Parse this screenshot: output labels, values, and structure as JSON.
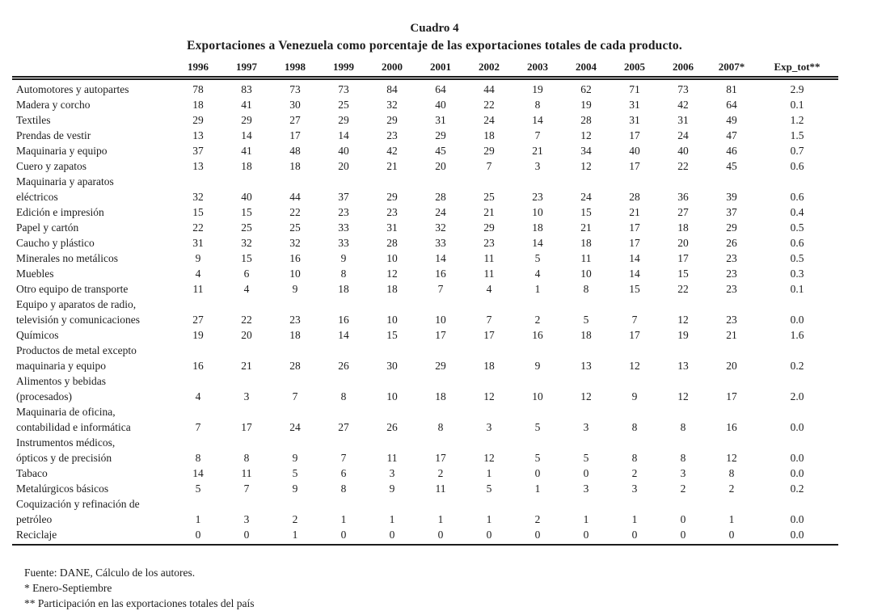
{
  "page": {
    "title": "Cuadro 4",
    "subtitle": "Exportaciones a Venezuela como porcentaje de las exportaciones totales de cada producto."
  },
  "colors": {
    "background": "#ffffff",
    "text": "#1c1c1c"
  },
  "chart_data": {
    "type": "table",
    "title": "Cuadro 4",
    "subtitle": "Exportaciones a Venezuela como porcentaje de las exportaciones totales de cada producto.",
    "columns": [
      "1996",
      "1997",
      "1998",
      "1999",
      "2000",
      "2001",
      "2002",
      "2003",
      "2004",
      "2005",
      "2006",
      "2007*",
      "Exp_tot**"
    ],
    "rows": [
      {
        "label": "Automotores y autopartes",
        "values": [
          78,
          83,
          73,
          73,
          84,
          64,
          44,
          19,
          62,
          71,
          73,
          81
        ],
        "exp_tot": "2.9"
      },
      {
        "label": "Madera y corcho",
        "values": [
          18,
          41,
          30,
          25,
          32,
          40,
          22,
          8,
          19,
          31,
          42,
          64
        ],
        "exp_tot": "0.1"
      },
      {
        "label": "Textiles",
        "values": [
          29,
          29,
          27,
          29,
          29,
          31,
          24,
          14,
          28,
          31,
          31,
          49
        ],
        "exp_tot": "1.2"
      },
      {
        "label": "Prendas de vestir",
        "values": [
          13,
          14,
          17,
          14,
          23,
          29,
          18,
          7,
          12,
          17,
          24,
          47
        ],
        "exp_tot": "1.5"
      },
      {
        "label": "Maquinaria y equipo",
        "values": [
          37,
          41,
          48,
          40,
          42,
          45,
          29,
          21,
          34,
          40,
          40,
          46
        ],
        "exp_tot": "0.7"
      },
      {
        "label": "Cuero y zapatos",
        "values": [
          13,
          18,
          18,
          20,
          21,
          20,
          7,
          3,
          12,
          17,
          22,
          45
        ],
        "exp_tot": "0.6"
      },
      {
        "label": "Maquinaria y aparatos\neléctricos",
        "values": [
          32,
          40,
          44,
          37,
          29,
          28,
          25,
          23,
          24,
          28,
          36,
          39
        ],
        "exp_tot": "0.6"
      },
      {
        "label": "Edición e impresión",
        "values": [
          15,
          15,
          22,
          23,
          23,
          24,
          21,
          10,
          15,
          21,
          27,
          37
        ],
        "exp_tot": "0.4"
      },
      {
        "label": "Papel y cartón",
        "values": [
          22,
          25,
          25,
          33,
          31,
          32,
          29,
          18,
          21,
          17,
          18,
          29
        ],
        "exp_tot": "0.5"
      },
      {
        "label": "Caucho y plástico",
        "values": [
          31,
          32,
          32,
          33,
          28,
          33,
          23,
          14,
          18,
          17,
          20,
          26
        ],
        "exp_tot": "0.6"
      },
      {
        "label": "Minerales no metálicos",
        "values": [
          9,
          15,
          16,
          9,
          10,
          14,
          11,
          5,
          11,
          14,
          17,
          23
        ],
        "exp_tot": "0.5"
      },
      {
        "label": "Muebles",
        "values": [
          4,
          6,
          10,
          8,
          12,
          16,
          11,
          4,
          10,
          14,
          15,
          23
        ],
        "exp_tot": "0.3"
      },
      {
        "label": "Otro equipo de transporte",
        "values": [
          11,
          4,
          9,
          18,
          18,
          7,
          4,
          1,
          8,
          15,
          22,
          23
        ],
        "exp_tot": "0.1"
      },
      {
        "label": "Equipo y aparatos de radio,\ntelevisión y comunicaciones",
        "values": [
          27,
          22,
          23,
          16,
          10,
          10,
          7,
          2,
          5,
          7,
          12,
          23
        ],
        "exp_tot": "0.0"
      },
      {
        "label": "Químicos",
        "values": [
          19,
          20,
          18,
          14,
          15,
          17,
          17,
          16,
          18,
          17,
          19,
          21
        ],
        "exp_tot": "1.6"
      },
      {
        "label": "Productos de metal excepto\nmaquinaria y equipo",
        "values": [
          16,
          21,
          28,
          26,
          30,
          29,
          18,
          9,
          13,
          12,
          13,
          20
        ],
        "exp_tot": "0.2"
      },
      {
        "label": "Alimentos y bebidas\n(procesados)",
        "values": [
          4,
          3,
          7,
          8,
          10,
          18,
          12,
          10,
          12,
          9,
          12,
          17
        ],
        "exp_tot": "2.0"
      },
      {
        "label": "Maquinaria de oficina,\ncontabilidad e informática",
        "values": [
          7,
          17,
          24,
          27,
          26,
          8,
          3,
          5,
          3,
          8,
          8,
          16
        ],
        "exp_tot": "0.0"
      },
      {
        "label": "Instrumentos médicos,\nópticos y de precisión",
        "values": [
          8,
          8,
          9,
          7,
          11,
          17,
          12,
          5,
          5,
          8,
          8,
          12
        ],
        "exp_tot": "0.0"
      },
      {
        "label": "Tabaco",
        "values": [
          14,
          11,
          5,
          6,
          3,
          2,
          1,
          0,
          0,
          2,
          3,
          8
        ],
        "exp_tot": "0.0"
      },
      {
        "label": "Metalúrgicos básicos",
        "values": [
          5,
          7,
          9,
          8,
          9,
          11,
          5,
          1,
          3,
          3,
          2,
          2
        ],
        "exp_tot": "0.2"
      },
      {
        "label": "Coquización y refinación de\npetróleo",
        "values": [
          1,
          3,
          2,
          1,
          1,
          1,
          1,
          2,
          1,
          1,
          0,
          1
        ],
        "exp_tot": "0.0"
      },
      {
        "label": "Reciclaje",
        "values": [
          0,
          0,
          1,
          0,
          0,
          0,
          0,
          0,
          0,
          0,
          0,
          0
        ],
        "exp_tot": "0.0"
      }
    ]
  },
  "footnotes": [
    "Fuente: DANE, Cálculo de los autores.",
    "* Enero-Septiembre",
    "** Participación en las exportaciones totales del país"
  ]
}
